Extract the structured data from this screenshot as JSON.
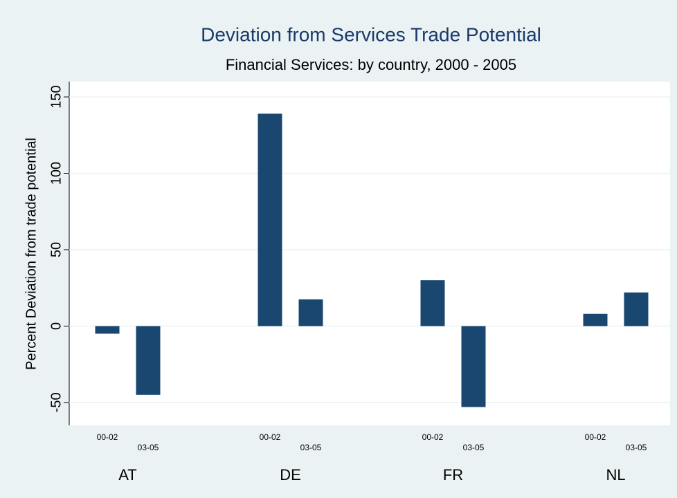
{
  "chart_data": {
    "type": "bar",
    "title": "Deviation from Services Trade Potential",
    "subtitle": "Financial Services: by country, 2000 - 2005",
    "y_label": "Percent Deviation from trade potential",
    "categories": [
      "AT",
      "DE",
      "FR",
      "NL"
    ],
    "bar_labels": [
      [
        "00-02",
        "03-05"
      ],
      [
        "00-02",
        "03-05"
      ],
      [
        "00-02",
        "03-05"
      ],
      [
        "00-02",
        "03-05"
      ]
    ],
    "values": [
      [
        -5,
        -45
      ],
      [
        139,
        17.5
      ],
      [
        30,
        -53
      ],
      [
        8,
        22
      ]
    ],
    "color": "#1a476f",
    "ylim": [
      -65,
      160
    ],
    "yticks": [
      -50,
      0,
      50,
      100,
      150
    ],
    "grid": true
  }
}
